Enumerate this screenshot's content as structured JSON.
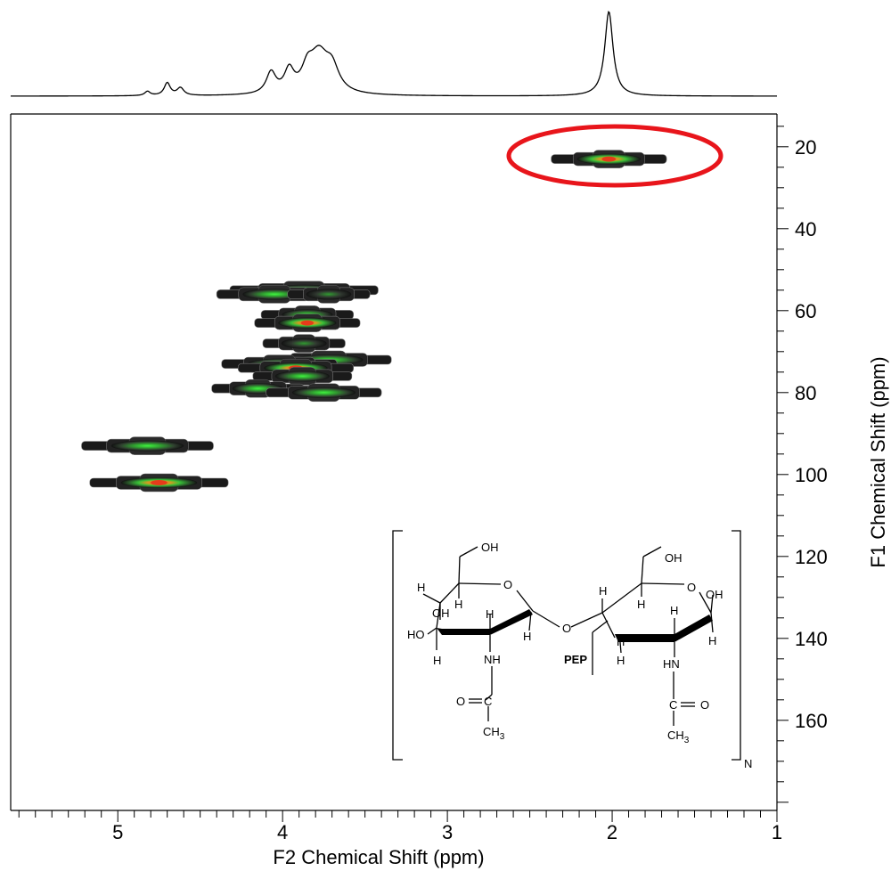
{
  "chart_data": {
    "type": "heatmap",
    "description_kind": "2D HSQC NMR spectrum with 1D projection",
    "xlabel": "F2 Chemical Shift (ppm)",
    "ylabel": "F1 Chemical Shift (ppm)",
    "xlim": [
      5.65,
      1.0
    ],
    "ylim": [
      12,
      182
    ],
    "x_ticks": [
      5,
      4,
      3,
      2,
      1
    ],
    "y_ticks": [
      20,
      40,
      60,
      80,
      100,
      120,
      140,
      160
    ],
    "x_tick_labels": [
      "5",
      "4",
      "3",
      "2",
      "1"
    ],
    "y_tick_labels": [
      "20",
      "40",
      "60",
      "80",
      "100",
      "120",
      "140",
      "160"
    ],
    "grid": false,
    "cross_peaks": [
      {
        "x": 2.02,
        "y": 23,
        "half_width": 0.35,
        "intensity": "high"
      },
      {
        "x": 3.87,
        "y": 55,
        "half_width": 0.45,
        "intensity": "medium"
      },
      {
        "x": 4.05,
        "y": 56,
        "half_width": 0.35,
        "intensity": "medium"
      },
      {
        "x": 3.72,
        "y": 56,
        "half_width": 0.25,
        "intensity": "low"
      },
      {
        "x": 3.85,
        "y": 61,
        "half_width": 0.28,
        "intensity": "medium"
      },
      {
        "x": 3.85,
        "y": 63,
        "half_width": 0.32,
        "intensity": "high"
      },
      {
        "x": 3.87,
        "y": 68,
        "half_width": 0.25,
        "intensity": "low"
      },
      {
        "x": 3.72,
        "y": 72,
        "half_width": 0.38,
        "intensity": "medium"
      },
      {
        "x": 4.02,
        "y": 73,
        "half_width": 0.35,
        "intensity": "medium"
      },
      {
        "x": 3.92,
        "y": 74,
        "half_width": 0.35,
        "intensity": "high"
      },
      {
        "x": 3.88,
        "y": 76,
        "half_width": 0.3,
        "intensity": "medium"
      },
      {
        "x": 4.15,
        "y": 79,
        "half_width": 0.28,
        "intensity": "medium"
      },
      {
        "x": 3.75,
        "y": 80,
        "half_width": 0.35,
        "intensity": "medium"
      },
      {
        "x": 4.82,
        "y": 93,
        "half_width": 0.4,
        "intensity": "medium"
      },
      {
        "x": 4.75,
        "y": 102,
        "half_width": 0.42,
        "intensity": "high"
      }
    ],
    "projection_peaks": [
      {
        "x": 2.02,
        "height": 1.0,
        "width": 0.03
      },
      {
        "x": 3.78,
        "height": 0.46,
        "width": 0.07
      },
      {
        "x": 3.7,
        "height": 0.26,
        "width": 0.05
      },
      {
        "x": 3.85,
        "height": 0.22,
        "width": 0.04
      },
      {
        "x": 3.96,
        "height": 0.26,
        "width": 0.035
      },
      {
        "x": 4.07,
        "height": 0.25,
        "width": 0.035
      },
      {
        "x": 4.62,
        "height": 0.09,
        "width": 0.025
      },
      {
        "x": 4.7,
        "height": 0.15,
        "width": 0.022
      },
      {
        "x": 4.82,
        "height": 0.05,
        "width": 0.02
      }
    ],
    "annotations": {
      "highlight_ellipse": {
        "x": 2.02,
        "y": 23,
        "color": "#e8151b"
      },
      "structure_labels": [
        "OH",
        "O",
        "H",
        "OH",
        "H",
        "H",
        "HO",
        "H",
        "H",
        "NH",
        "O",
        "C",
        "CH3",
        "O",
        "OH",
        "H",
        "O",
        "OH",
        "H",
        "H",
        "PEP",
        "H",
        "HN",
        "H",
        "H",
        "C",
        "O",
        "CH3",
        "N"
      ]
    }
  },
  "colors": {
    "ellipse": "#e8151b",
    "contour_low": "#000000",
    "contour_mid": "#2db92d",
    "contour_high": "#e8401a"
  }
}
